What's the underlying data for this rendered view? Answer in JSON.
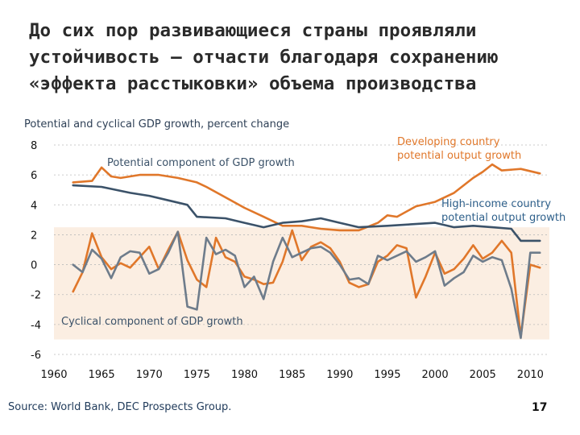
{
  "slide": {
    "title_lines": [
      "До сих пор развивающиеся страны проявляли",
      "устойчивость – отчасти благодаря сохранению",
      "«эффекта расстыковки» объема производства"
    ],
    "source": "Source: World Bank, DEC Prospects Group.",
    "page_number": "17"
  },
  "chart_data": {
    "type": "line",
    "title": "Potential and cyclical GDP growth, percent change",
    "xlabel": "",
    "ylabel": "",
    "xlim": [
      1960,
      2012
    ],
    "ylim": [
      -6,
      8
    ],
    "xticks": [
      1960,
      1965,
      1970,
      1975,
      1980,
      1985,
      1990,
      1995,
      2000,
      2005,
      2010
    ],
    "yticks": [
      8,
      6,
      4,
      2,
      0,
      -2,
      -4,
      -6
    ],
    "shaded_band": {
      "ymin": -5,
      "ymax": 2.5,
      "color": "#fbeee2"
    },
    "colors": {
      "developing": "#e0772a",
      "high_income": "#3b5269",
      "text_dark": "#2d3f55",
      "axis": "#bbbbbb"
    },
    "annotations": {
      "potential": "Potential component of GDP growth",
      "cyclical": "Cyclical component of GDP growth",
      "developing_line1": "Developing country",
      "developing_line2": "potential output growth",
      "high_income_line1": "High-income country",
      "high_income_line2": "potential output growth"
    },
    "series": [
      {
        "name": "Developing country potential output growth",
        "color": "#e0772a",
        "x": [
          1962,
          1964,
          1965,
          1966,
          1967,
          1969,
          1971,
          1973,
          1975,
          1976,
          1978,
          1980,
          1982,
          1984,
          1986,
          1988,
          1990,
          1992,
          1994,
          1995,
          1996,
          1998,
          2000,
          2002,
          2004,
          2005,
          2006,
          2007,
          2009,
          2011
        ],
        "values": [
          5.5,
          5.6,
          6.5,
          5.9,
          5.8,
          6.0,
          6.0,
          5.8,
          5.5,
          5.2,
          4.5,
          3.8,
          3.2,
          2.6,
          2.6,
          2.4,
          2.3,
          2.3,
          2.8,
          3.3,
          3.2,
          3.9,
          4.2,
          4.8,
          5.8,
          6.2,
          6.7,
          6.3,
          6.4,
          6.1
        ]
      },
      {
        "name": "High-income country potential output growth",
        "color": "#3b5269",
        "x": [
          1962,
          1965,
          1968,
          1970,
          1972,
          1974,
          1975,
          1978,
          1980,
          1982,
          1984,
          1986,
          1988,
          1990,
          1992,
          1995,
          2000,
          2002,
          2004,
          2006,
          2008,
          2009,
          2011
        ],
        "values": [
          5.3,
          5.2,
          4.8,
          4.6,
          4.3,
          4.0,
          3.2,
          3.1,
          2.8,
          2.5,
          2.8,
          2.9,
          3.1,
          2.8,
          2.5,
          2.6,
          2.8,
          2.5,
          2.6,
          2.5,
          2.4,
          1.6,
          1.6
        ]
      },
      {
        "name": "Developing country cyclical component",
        "color": "#e0772a",
        "x": [
          1962,
          1963,
          1964,
          1965,
          1966,
          1967,
          1968,
          1969,
          1970,
          1971,
          1972,
          1973,
          1974,
          1975,
          1976,
          1977,
          1978,
          1979,
          1980,
          1981,
          1982,
          1983,
          1984,
          1985,
          1986,
          1987,
          1988,
          1989,
          1990,
          1991,
          1992,
          1993,
          1994,
          1995,
          1996,
          1997,
          1998,
          1999,
          2000,
          2001,
          2002,
          2003,
          2004,
          2005,
          2006,
          2007,
          2008,
          2009,
          2010,
          2011
        ],
        "values": [
          -1.8,
          -0.5,
          2.1,
          0.5,
          -0.3,
          0.1,
          -0.2,
          0.5,
          1.2,
          -0.3,
          1.0,
          2.2,
          0.3,
          -1.0,
          -1.5,
          1.8,
          0.5,
          0.2,
          -0.8,
          -1.0,
          -1.3,
          -1.2,
          0.2,
          2.3,
          0.3,
          1.2,
          1.5,
          1.1,
          0.2,
          -1.2,
          -1.5,
          -1.3,
          0.2,
          0.6,
          1.3,
          1.1,
          -2.2,
          -0.8,
          0.8,
          -0.6,
          -0.3,
          0.4,
          1.3,
          0.4,
          0.8,
          1.6,
          0.8,
          -4.8,
          0.0,
          -0.2
        ]
      },
      {
        "name": "High-income country cyclical component",
        "color": "#6e7c8b",
        "x": [
          1962,
          1963,
          1964,
          1965,
          1966,
          1967,
          1968,
          1969,
          1970,
          1971,
          1972,
          1973,
          1974,
          1975,
          1976,
          1977,
          1978,
          1979,
          1980,
          1981,
          1982,
          1983,
          1984,
          1985,
          1986,
          1987,
          1988,
          1989,
          1990,
          1991,
          1992,
          1993,
          1994,
          1995,
          1996,
          1997,
          1998,
          1999,
          2000,
          2001,
          2002,
          2003,
          2004,
          2005,
          2006,
          2007,
          2008,
          2009,
          2010,
          2011
        ],
        "values": [
          0.0,
          -0.5,
          1.0,
          0.4,
          -0.9,
          0.5,
          0.9,
          0.8,
          -0.6,
          -0.3,
          0.8,
          2.2,
          -2.8,
          -3.0,
          1.8,
          0.7,
          1.0,
          0.6,
          -1.5,
          -0.8,
          -2.3,
          0.2,
          1.8,
          0.5,
          0.8,
          1.1,
          1.2,
          0.8,
          0.0,
          -1.0,
          -0.9,
          -1.3,
          0.6,
          0.3,
          0.6,
          0.9,
          0.2,
          0.5,
          0.9,
          -1.4,
          -0.9,
          -0.5,
          0.6,
          0.2,
          0.5,
          0.3,
          -1.6,
          -4.9,
          0.8,
          0.8
        ]
      }
    ]
  }
}
